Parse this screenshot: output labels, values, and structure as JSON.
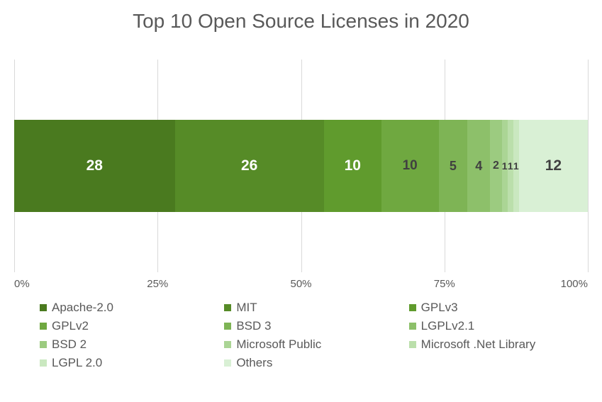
{
  "chart": {
    "type": "stacked-bar-100",
    "title": "Top 10 Open Source Licenses in 2020",
    "title_fontsize": 28,
    "title_color": "#595959",
    "background_color": "#ffffff",
    "grid_color": "#d9d9d9",
    "xlim": [
      0,
      100
    ],
    "xticks": [
      0,
      25,
      50,
      75,
      100
    ],
    "xtick_labels": [
      "0%",
      "25%",
      "50%",
      "75%",
      "100%"
    ],
    "axis_fontsize": 15,
    "axis_color": "#595959",
    "segments": [
      {
        "name": "Apache-2.0",
        "value": 28,
        "label": "28",
        "color": "#4a7a1f",
        "text_color": "#ffffff",
        "label_fontsize": 21
      },
      {
        "name": "MIT",
        "value": 26,
        "label": "26",
        "color": "#568b27",
        "text_color": "#ffffff",
        "label_fontsize": 21
      },
      {
        "name": "GPLv3",
        "value": 10,
        "label": "10",
        "color": "#609b2d",
        "text_color": "#ffffff",
        "label_fontsize": 21
      },
      {
        "name": "GPLv2",
        "value": 10,
        "label": "10",
        "color": "#6fa840",
        "text_color": "#404040",
        "label_fontsize": 19
      },
      {
        "name": "BSD 3",
        "value": 5,
        "label": "5",
        "color": "#7eb455",
        "text_color": "#404040",
        "label_fontsize": 18
      },
      {
        "name": "LGPLv2.1",
        "value": 4,
        "label": "4",
        "color": "#8dc06a",
        "text_color": "#404040",
        "label_fontsize": 18
      },
      {
        "name": "BSD 2",
        "value": 2,
        "label": "2",
        "color": "#9ccb80",
        "text_color": "#404040",
        "label_fontsize": 16
      },
      {
        "name": "Microsoft Public",
        "value": 1,
        "label": "1",
        "color": "#abd595",
        "text_color": "#404040",
        "label_fontsize": 14
      },
      {
        "name": "Microsoft .Net Library",
        "value": 1,
        "label": "1",
        "color": "#bbdfab",
        "text_color": "#404040",
        "label_fontsize": 14
      },
      {
        "name": "LGPL 2.0",
        "value": 1,
        "label": "1",
        "color": "#cae8c0",
        "text_color": "#404040",
        "label_fontsize": 14
      },
      {
        "name": "Others",
        "value": 12,
        "label": "12",
        "color": "#d9f0d5",
        "text_color": "#404040",
        "label_fontsize": 21
      }
    ],
    "legend_fontsize": 17,
    "legend_columns": 3
  }
}
